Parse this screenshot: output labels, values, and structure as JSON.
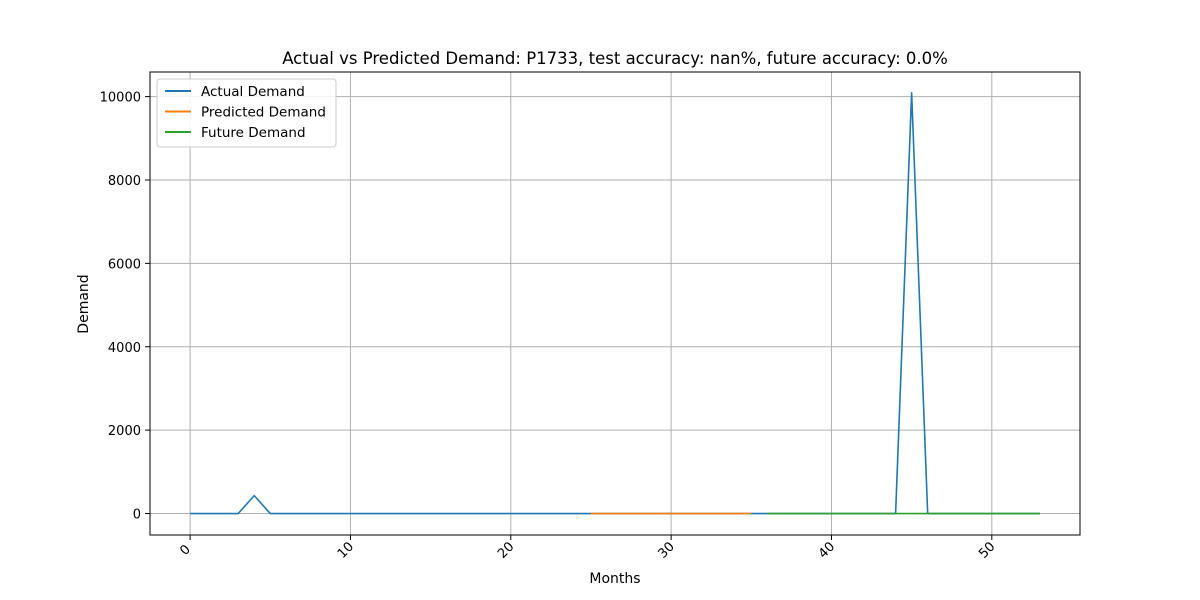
{
  "chart_data": {
    "type": "line",
    "title": "Actual vs Predicted Demand: P1733, test accuracy: nan%, future accuracy: 0.0%",
    "xlabel": "Months",
    "ylabel": "Demand",
    "xlim": [
      -2.5,
      55.5
    ],
    "ylim": [
      -515,
      10590
    ],
    "xticks": [
      0,
      10,
      20,
      30,
      40,
      50
    ],
    "xtick_labels": [
      "0",
      "10",
      "20",
      "30",
      "40",
      "50"
    ],
    "yticks": [
      0,
      2000,
      4000,
      6000,
      8000,
      10000
    ],
    "ytick_labels": [
      "0",
      "2000",
      "4000",
      "6000",
      "8000",
      "10000"
    ],
    "xtick_rotation": 45,
    "grid": true,
    "legend_position": "upper left",
    "series": [
      {
        "name": "Actual Demand",
        "color": "#1f77b4",
        "x": [
          0,
          1,
          2,
          3,
          4,
          5,
          6,
          7,
          8,
          9,
          10,
          11,
          12,
          13,
          14,
          15,
          16,
          17,
          18,
          19,
          20,
          21,
          22,
          23,
          24,
          25,
          26,
          27,
          28,
          29,
          30,
          31,
          32,
          33,
          34,
          35,
          36,
          37,
          38,
          39,
          40,
          41,
          42,
          43,
          44,
          45,
          46,
          47,
          48,
          49,
          50,
          51,
          52,
          53
        ],
        "y": [
          0,
          0,
          0,
          0,
          430,
          0,
          0,
          0,
          0,
          0,
          0,
          0,
          0,
          0,
          0,
          0,
          0,
          0,
          0,
          0,
          0,
          0,
          0,
          0,
          0,
          0,
          0,
          0,
          0,
          0,
          0,
          0,
          0,
          0,
          0,
          0,
          0,
          0,
          0,
          0,
          0,
          0,
          0,
          0,
          0,
          10090,
          0,
          0,
          0,
          0,
          0,
          0,
          0,
          0
        ]
      },
      {
        "name": "Predicted Demand",
        "color": "#ff7f0e",
        "x": [
          25,
          26,
          27,
          28,
          29,
          30,
          31,
          32,
          33,
          34,
          35
        ],
        "y": [
          0,
          0,
          0,
          0,
          0,
          0,
          0,
          0,
          0,
          0,
          0
        ]
      },
      {
        "name": "Future Demand",
        "color": "#2ca02c",
        "x": [
          36,
          37,
          38,
          39,
          40,
          41,
          42,
          43,
          44,
          45,
          46,
          47,
          48,
          49,
          50,
          51,
          52,
          53
        ],
        "y": [
          0,
          0,
          0,
          0,
          0,
          0,
          0,
          0,
          0,
          0,
          0,
          0,
          0,
          0,
          0,
          0,
          0,
          0
        ]
      }
    ]
  }
}
